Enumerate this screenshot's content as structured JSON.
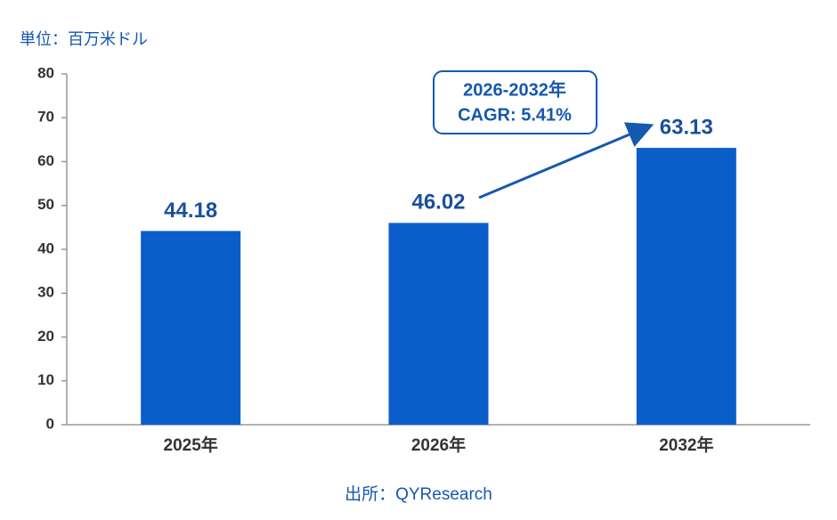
{
  "chart_data": {
    "type": "bar",
    "unit_label": "単位：百万米ドル",
    "source": "出所：QYResearch",
    "annotation": [
      "2026-2032年",
      "CAGR: 5.41%"
    ],
    "categories": [
      "2025年",
      "2026年",
      "2032年"
    ],
    "values": [
      44.18,
      46.02,
      63.13
    ],
    "color": "#0b5ec9",
    "ylim": [
      0,
      80
    ],
    "yticks": [
      0,
      10,
      20,
      30,
      40,
      50,
      60,
      70,
      80
    ],
    "grid": false
  }
}
